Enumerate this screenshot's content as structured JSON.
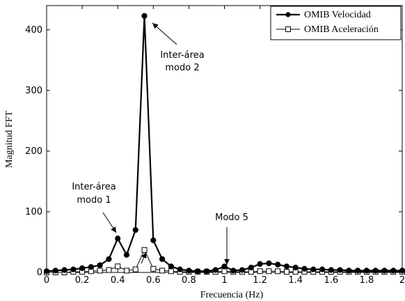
{
  "chart_data": {
    "type": "line",
    "xlabel": "Frecuencia (Hz)",
    "ylabel": "Magnitud FFT",
    "xlim": [
      0,
      2
    ],
    "ylim": [
      0,
      440
    ],
    "x_ticks": [
      0,
      0.2,
      0.4,
      0.6,
      0.8,
      1,
      1.2,
      1.4,
      1.6,
      1.8,
      2
    ],
    "x_tick_labels": [
      "0",
      "0.2",
      "0.4",
      "0.6",
      "0.8",
      "1",
      "1.2",
      "1.4",
      "1.6",
      "1.8",
      "2"
    ],
    "y_ticks": [
      0,
      100,
      200,
      300,
      400
    ],
    "y_tick_labels": [
      "0",
      "100",
      "200",
      "300",
      "400"
    ],
    "grid": false,
    "legend_position": "top-right",
    "series": [
      {
        "name": "OMIB Velocidad",
        "marker": "filled-circle",
        "color": "#000000",
        "x": [
          0,
          0.05,
          0.1,
          0.15,
          0.2,
          0.25,
          0.3,
          0.35,
          0.4,
          0.45,
          0.5,
          0.55,
          0.6,
          0.65,
          0.7,
          0.75,
          0.8,
          0.85,
          0.9,
          0.95,
          1.0,
          1.05,
          1.1,
          1.15,
          1.2,
          1.25,
          1.3,
          1.35,
          1.4,
          1.45,
          1.5,
          1.55,
          1.6,
          1.65,
          1.7,
          1.75,
          1.8,
          1.85,
          1.9,
          1.95,
          2.0
        ],
        "y": [
          2,
          3,
          4,
          5,
          7,
          9,
          12,
          22,
          56,
          29,
          70,
          423,
          53,
          22,
          10,
          5,
          3,
          2,
          2,
          4,
          10,
          3,
          4,
          8,
          14,
          15,
          13,
          10,
          8,
          6,
          5,
          5,
          4,
          4,
          3,
          3,
          3,
          3,
          3,
          3,
          3
        ]
      },
      {
        "name": "OMIB Aceleración",
        "marker": "open-square",
        "color": "#000000",
        "x": [
          0,
          0.05,
          0.1,
          0.15,
          0.2,
          0.25,
          0.3,
          0.35,
          0.4,
          0.45,
          0.5,
          0.55,
          0.6,
          0.65,
          0.7,
          0.75,
          0.8,
          0.85,
          0.9,
          0.95,
          1.0,
          1.05,
          1.1,
          1.15,
          1.2,
          1.25,
          1.3,
          1.35,
          1.4,
          1.45,
          1.5,
          1.55,
          1.6,
          1.65,
          1.7,
          1.75,
          1.8,
          1.85,
          1.9,
          1.95,
          2.0
        ],
        "y": [
          0,
          0,
          0,
          1,
          1,
          2,
          3,
          4,
          10,
          3,
          5,
          37,
          6,
          3,
          2,
          1,
          1,
          1,
          1,
          1,
          2,
          1,
          1,
          1,
          2,
          2,
          2,
          1,
          1,
          1,
          1,
          1,
          1,
          1,
          1,
          1,
          1,
          1,
          1,
          1,
          1
        ]
      }
    ],
    "annotations": [
      {
        "lines": [
          "Inter-área",
          "modo 2"
        ],
        "target_x": 0.57,
        "target_y": 420
      },
      {
        "lines": [
          "Inter-área",
          "modo 1"
        ],
        "target_x": 0.4,
        "target_y": 58
      },
      {
        "lines": [
          ""
        ],
        "target_x": 0.55,
        "target_y": 36
      },
      {
        "lines": [
          "Modo 5"
        ],
        "target_x": 1.0,
        "target_y": 12
      }
    ]
  }
}
